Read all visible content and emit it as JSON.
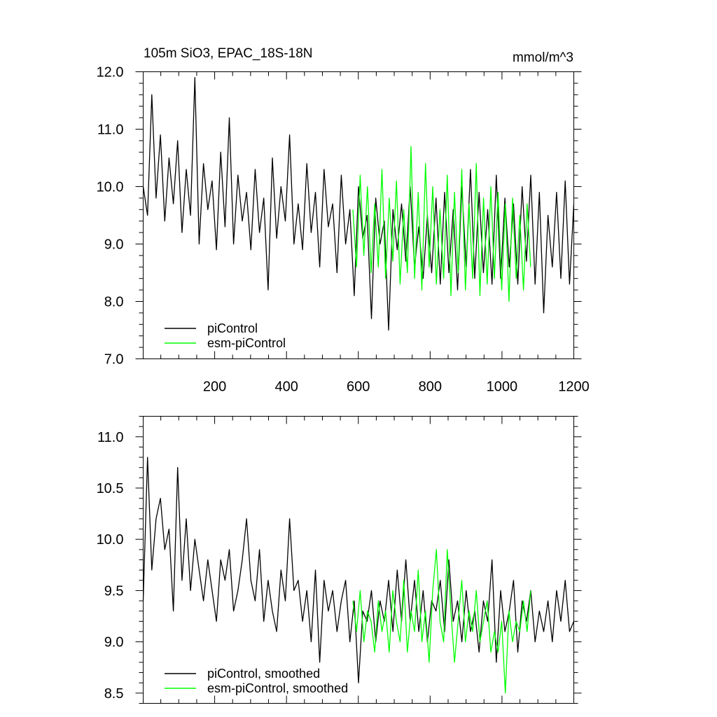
{
  "chart_data": [
    {
      "type": "line",
      "title": "105m SiO3, EPAC_18S-18N",
      "units": "mmol/m^3",
      "xlim": [
        1,
        1200
      ],
      "ylim": [
        7.0,
        12.0
      ],
      "xticks": [
        200,
        400,
        600,
        800,
        1000,
        1200
      ],
      "xtick_labels": [
        "200",
        "400",
        "600",
        "800",
        "1000",
        "1200"
      ],
      "yticks": [
        7.0,
        8.0,
        9.0,
        10.0,
        11.0,
        12.0
      ],
      "ytick_labels": [
        "7.0",
        "8.0",
        "9.0",
        "10.0",
        "11.0",
        "12.0"
      ],
      "legend": {
        "placement": "bottom-left",
        "entries": [
          "piControl",
          "esm-piControl"
        ]
      },
      "series": [
        {
          "name": "piControl",
          "color": "#000000",
          "x_start": 1,
          "x_end": 1200,
          "x_every": 12,
          "values": [
            10.0,
            9.5,
            11.6,
            9.8,
            10.9,
            9.4,
            10.5,
            9.7,
            10.8,
            9.2,
            10.3,
            9.5,
            11.9,
            9.0,
            10.4,
            9.6,
            10.1,
            8.9,
            10.6,
            9.3,
            11.2,
            9.0,
            10.2,
            9.4,
            9.9,
            8.9,
            10.3,
            9.2,
            9.8,
            8.2,
            10.5,
            9.1,
            10.0,
            9.4,
            10.9,
            9.0,
            9.7,
            8.9,
            10.4,
            9.2,
            9.9,
            8.6,
            10.3,
            9.3,
            9.7,
            8.5,
            10.2,
            9.0,
            9.6,
            8.1,
            10.0,
            9.1,
            9.5,
            7.7,
            9.8,
            9.0,
            9.4,
            7.5,
            9.6,
            8.9,
            9.7,
            8.7,
            10.0,
            8.6,
            9.3,
            8.4,
            9.5,
            8.5,
            9.8,
            8.3,
            9.9,
            8.5,
            9.6,
            8.2,
            10.0,
            8.6,
            10.3,
            8.4,
            9.9,
            8.5,
            9.6,
            8.3,
            10.2,
            8.4,
            9.8,
            8.6,
            9.7,
            8.3,
            10.0,
            8.7,
            10.2,
            8.3,
            9.9,
            7.8,
            9.5,
            8.6,
            9.9,
            8.4,
            10.1,
            8.3,
            9.7
          ]
        },
        {
          "name": "esm-piControl",
          "color": "#00ff00",
          "x_start": 585,
          "x_end": 1080,
          "x_every": 10,
          "values": [
            9.6,
            8.6,
            10.2,
            8.8,
            10.0,
            8.5,
            9.7,
            8.6,
            10.3,
            8.4,
            9.8,
            8.7,
            10.1,
            8.3,
            9.6,
            8.5,
            10.7,
            8.4,
            9.9,
            8.2,
            10.4,
            8.6,
            10.0,
            8.3,
            9.6,
            8.4,
            10.2,
            8.1,
            9.9,
            8.5,
            10.3,
            8.2,
            9.7,
            8.4,
            10.4,
            8.1,
            9.8,
            8.3,
            10.0,
            8.4,
            9.9,
            8.2,
            9.7,
            8.0,
            9.8,
            8.4,
            9.5,
            8.2,
            9.7,
            8.6
          ]
        }
      ]
    },
    {
      "type": "line",
      "xlim": [
        1,
        1200
      ],
      "ylim": [
        8.4,
        11.2
      ],
      "xticks": [
        200,
        400,
        600,
        800,
        1000,
        1200
      ],
      "yticks": [
        8.5,
        9.0,
        9.5,
        10.0,
        10.5,
        11.0
      ],
      "ytick_labels": [
        "8.5",
        "9.0",
        "9.5",
        "10.0",
        "10.5",
        "11.0"
      ],
      "legend": {
        "placement": "bottom-left",
        "entries": [
          "piControl, smoothed",
          "esm-piControl, smoothed"
        ]
      },
      "series": [
        {
          "name": "piControl, smoothed",
          "color": "#000000",
          "x_start": 1,
          "x_end": 1200,
          "x_every": 12,
          "values": [
            9.4,
            10.8,
            9.7,
            10.2,
            10.4,
            9.9,
            10.1,
            9.3,
            10.7,
            9.6,
            10.2,
            9.5,
            10.0,
            9.7,
            9.4,
            9.8,
            9.5,
            9.2,
            9.8,
            9.6,
            9.9,
            9.3,
            9.5,
            9.8,
            10.2,
            9.6,
            9.4,
            9.9,
            9.2,
            9.6,
            9.3,
            9.1,
            9.7,
            9.4,
            10.2,
            9.5,
            9.6,
            9.2,
            9.5,
            9.0,
            9.7,
            8.8,
            9.6,
            9.3,
            9.5,
            9.1,
            9.4,
            9.6,
            9.0,
            9.4,
            8.6,
            9.3,
            9.2,
            9.5,
            9.0,
            9.4,
            9.2,
            9.6,
            9.1,
            9.7,
            9.2,
            9.8,
            9.2,
            9.6,
            9.1,
            9.5,
            9.0,
            9.4,
            9.3,
            9.6,
            9.1,
            9.8,
            9.2,
            9.4,
            9.0,
            9.5,
            9.1,
            9.3,
            8.9,
            9.4,
            9.2,
            9.8,
            8.8,
            9.5,
            9.1,
            9.3,
            9.6,
            8.9,
            9.4,
            9.2,
            9.5,
            9.0,
            9.3,
            9.1,
            9.4,
            9.0,
            9.5,
            9.2,
            9.6,
            9.1,
            9.2
          ]
        },
        {
          "name": "esm-piControl, smoothed",
          "color": "#00ff00",
          "x_start": 585,
          "x_end": 1080,
          "x_every": 10,
          "values": [
            9.4,
            9.1,
            9.5,
            9.0,
            9.3,
            9.2,
            8.9,
            9.4,
            9.1,
            9.3,
            8.9,
            9.5,
            9.2,
            9.0,
            9.6,
            8.9,
            9.3,
            9.1,
            9.7,
            9.0,
            9.3,
            8.8,
            9.5,
            9.9,
            9.2,
            9.0,
            9.9,
            9.3,
            8.8,
            9.2,
            9.6,
            9.0,
            9.3,
            9.1,
            9.5,
            9.0,
            9.2,
            9.4,
            8.9,
            9.1,
            8.9,
            9.2,
            8.5,
            9.3,
            9.0,
            9.2,
            9.1,
            9.4,
            9.1,
            9.5
          ]
        }
      ]
    }
  ]
}
